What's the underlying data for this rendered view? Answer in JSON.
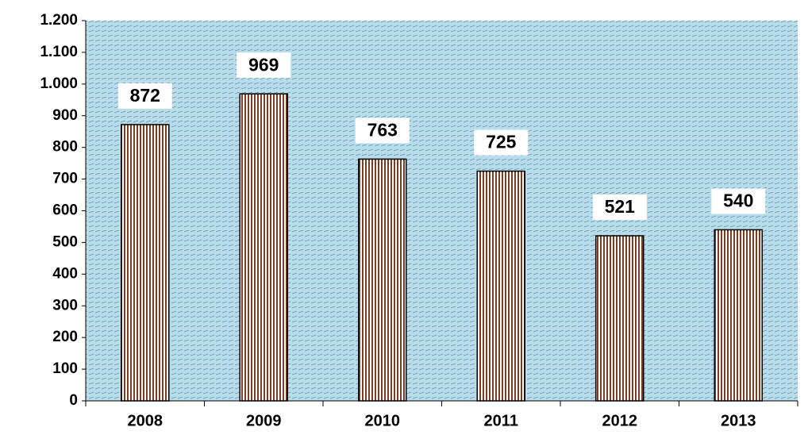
{
  "chart_data": {
    "type": "bar",
    "categories": [
      "2008",
      "2009",
      "2010",
      "2011",
      "2012",
      "2013"
    ],
    "values": [
      872,
      969,
      763,
      725,
      521,
      540
    ],
    "color": "#7a3b1f",
    "ylim": [
      0,
      1200
    ],
    "yticks": [
      0,
      100,
      200,
      300,
      400,
      500,
      600,
      700,
      800,
      900,
      {
        "value": 1000,
        "label": "1.000"
      },
      {
        "value": 1100,
        "label": "1.100"
      },
      {
        "value": 1200,
        "label": "1.200"
      }
    ]
  }
}
